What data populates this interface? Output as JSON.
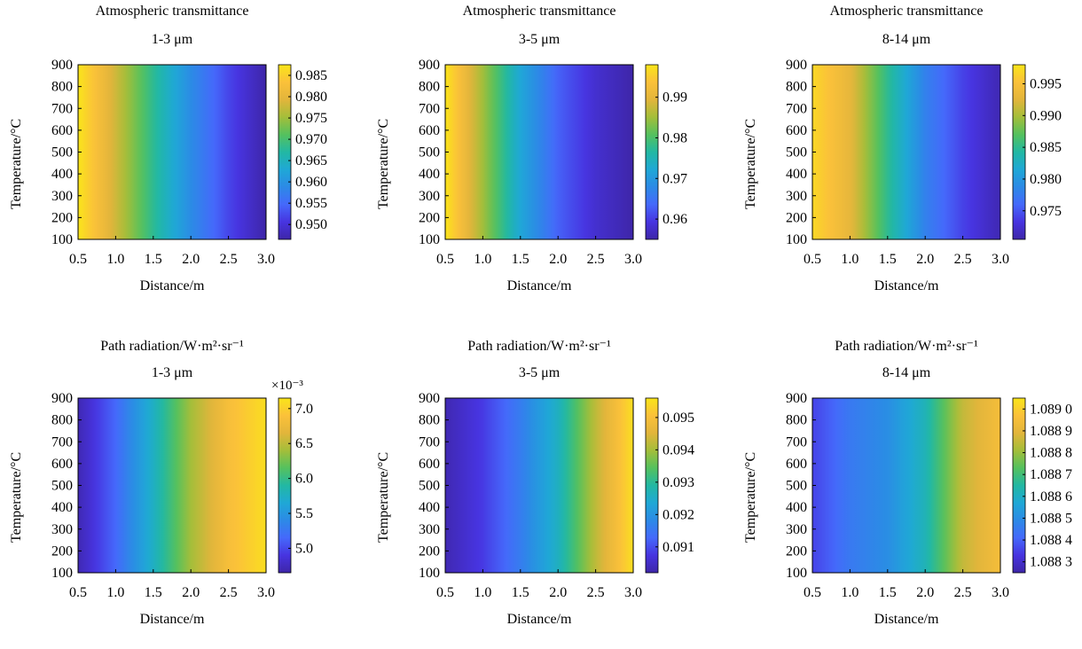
{
  "chart_data": [
    {
      "type": "heatmap",
      "title": "Atmospheric transmittance",
      "band": "1-3 μm",
      "xlabel": "Distance/m",
      "ylabel": "Temperature/°C",
      "x_ticks": [
        "0.5",
        "1.0",
        "1.5",
        "2.0",
        "2.5",
        "3.0"
      ],
      "xlim": [
        0.5,
        3.0
      ],
      "y_ticks": [
        "100",
        "200",
        "300",
        "400",
        "500",
        "600",
        "700",
        "800",
        "900"
      ],
      "ylim": [
        100,
        900
      ],
      "colorbar": {
        "ticks": [
          "0.985",
          "0.980",
          "0.975",
          "0.970",
          "0.965",
          "0.960",
          "0.955",
          "0.950"
        ],
        "tick_values": [
          0.985,
          0.98,
          0.975,
          0.97,
          0.965,
          0.96,
          0.955,
          0.95
        ],
        "range": [
          0.9465,
          0.9875
        ],
        "exponent": ""
      },
      "profile_x": [
        0.5,
        1.0,
        1.5,
        2.0,
        2.5,
        3.0
      ],
      "profile_values": [
        0.9875,
        0.978,
        0.968,
        0.959,
        0.952,
        0.9465
      ],
      "trend": "decreasing with distance, nearly constant with temperature"
    },
    {
      "type": "heatmap",
      "title": "Atmospheric transmittance",
      "band": "3-5 μm",
      "xlabel": "Distance/m",
      "ylabel": "Temperature/°C",
      "x_ticks": [
        "0.5",
        "1.0",
        "1.5",
        "2.0",
        "2.5",
        "3.0"
      ],
      "xlim": [
        0.5,
        3.0
      ],
      "y_ticks": [
        "100",
        "200",
        "300",
        "400",
        "500",
        "600",
        "700",
        "800",
        "900"
      ],
      "ylim": [
        100,
        900
      ],
      "colorbar": {
        "ticks": [
          "0.99",
          "0.98",
          "0.97",
          "0.96"
        ],
        "tick_values": [
          0.99,
          0.98,
          0.97,
          0.96
        ],
        "range": [
          0.955,
          0.998
        ],
        "exponent": ""
      },
      "profile_x": [
        0.5,
        1.0,
        1.5,
        2.0,
        2.5,
        3.0
      ],
      "profile_values": [
        0.998,
        0.985,
        0.972,
        0.963,
        0.958,
        0.955
      ],
      "trend": "decreasing with distance, nearly constant with temperature"
    },
    {
      "type": "heatmap",
      "title": "Atmospheric transmittance",
      "band": "8-14 μm",
      "xlabel": "Distance/m",
      "ylabel": "Temperature/°C",
      "x_ticks": [
        "0.5",
        "1.0",
        "1.5",
        "2.0",
        "2.5",
        "3.0"
      ],
      "xlim": [
        0.5,
        3.0
      ],
      "y_ticks": [
        "100",
        "200",
        "300",
        "400",
        "500",
        "600",
        "700",
        "800",
        "900"
      ],
      "ylim": [
        100,
        900
      ],
      "colorbar": {
        "ticks": [
          "0.995",
          "0.990",
          "0.985",
          "0.980",
          "0.975"
        ],
        "tick_values": [
          0.995,
          0.99,
          0.985,
          0.98,
          0.975
        ],
        "range": [
          0.9705,
          0.998
        ],
        "exponent": ""
      },
      "profile_x": [
        0.5,
        1.0,
        1.5,
        2.0,
        2.5,
        3.0
      ],
      "profile_values": [
        0.997,
        0.993,
        0.985,
        0.978,
        0.974,
        0.971
      ],
      "trend": "decreasing with distance, slightly higher near 300 °C"
    },
    {
      "type": "heatmap",
      "title": "Path radiation/W·m²·sr⁻¹",
      "band": "1-3 μm",
      "xlabel": "Distance/m",
      "ylabel": "Temperature/°C",
      "x_ticks": [
        "0.5",
        "1.0",
        "1.5",
        "2.0",
        "2.5",
        "3.0"
      ],
      "xlim": [
        0.5,
        3.0
      ],
      "y_ticks": [
        "100",
        "200",
        "300",
        "400",
        "500",
        "600",
        "700",
        "800",
        "900"
      ],
      "ylim": [
        100,
        900
      ],
      "colorbar": {
        "ticks": [
          "7.0",
          "6.5",
          "6.0",
          "5.5",
          "5.0"
        ],
        "tick_values": [
          7.0,
          6.5,
          6.0,
          5.5,
          5.0
        ],
        "range": [
          4.65,
          7.15
        ],
        "exponent": "×10⁻³"
      },
      "profile_x": [
        0.5,
        1.0,
        1.5,
        2.0,
        2.5,
        3.0
      ],
      "profile_values": [
        4.7,
        5.15,
        5.75,
        6.4,
        6.85,
        7.1
      ],
      "trend": "increasing with distance, nearly constant with temperature"
    },
    {
      "type": "heatmap",
      "title": "Path radiation/W·m²·sr⁻¹",
      "band": "3-5 μm",
      "xlabel": "Distance/m",
      "ylabel": "Temperature/°C",
      "x_ticks": [
        "0.5",
        "1.0",
        "1.5",
        "2.0",
        "2.5",
        "3.0"
      ],
      "xlim": [
        0.5,
        3.0
      ],
      "y_ticks": [
        "100",
        "200",
        "300",
        "400",
        "500",
        "600",
        "700",
        "800",
        "900"
      ],
      "ylim": [
        100,
        900
      ],
      "colorbar": {
        "ticks": [
          "0.095",
          "0.094",
          "0.093",
          "0.092",
          "0.091"
        ],
        "tick_values": [
          0.095,
          0.094,
          0.093,
          0.092,
          0.091
        ],
        "range": [
          0.0902,
          0.0956
        ],
        "exponent": ""
      },
      "profile_x": [
        0.5,
        1.0,
        1.5,
        2.0,
        2.5,
        3.0
      ],
      "profile_values": [
        0.0903,
        0.0908,
        0.0916,
        0.0926,
        0.0942,
        0.0955
      ],
      "trend": "increasing with distance, nearly constant with temperature"
    },
    {
      "type": "heatmap",
      "title": "Path radiation/W·m²·sr⁻¹",
      "band": "8-14 μm",
      "xlabel": "Distance/m",
      "ylabel": "Temperature/°C",
      "x_ticks": [
        "0.5",
        "1.0",
        "1.5",
        "2.0",
        "2.5",
        "3.0"
      ],
      "xlim": [
        0.5,
        3.0
      ],
      "y_ticks": [
        "100",
        "200",
        "300",
        "400",
        "500",
        "600",
        "700",
        "800",
        "900"
      ],
      "ylim": [
        100,
        900
      ],
      "colorbar": {
        "ticks": [
          "1.089 0",
          "1.088 9",
          "1.088 8",
          "1.088 7",
          "1.088 6",
          "1.088 5",
          "1.088 4",
          "1.088 3"
        ],
        "tick_values": [
          1.089,
          1.0889,
          1.0888,
          1.0887,
          1.0886,
          1.0885,
          1.0884,
          1.0883
        ],
        "range": [
          1.08825,
          1.08905
        ],
        "exponent": ""
      },
      "profile_x": [
        0.5,
        1.0,
        1.5,
        2.0,
        2.5,
        3.0
      ],
      "profile_values": [
        1.08835,
        1.08845,
        1.0885,
        1.08862,
        1.08885,
        1.08895
      ],
      "trend": "increasing with distance, irregular with temperature"
    }
  ],
  "colormap": [
    "#3e26a8",
    "#4734e0",
    "#4569fb",
    "#2c8ae6",
    "#1fa8d6",
    "#22b8a3",
    "#55c15e",
    "#a4be3a",
    "#e2b53b",
    "#fbc13a",
    "#f9e519"
  ]
}
